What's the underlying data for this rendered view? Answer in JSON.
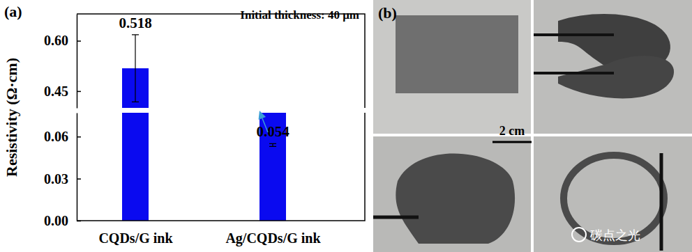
{
  "chart_data": {
    "type": "bar",
    "panel": "(a)",
    "annotation": "Initial thickness: 40 μm",
    "y_label": "Resistivity (Ω·cm)",
    "categories": [
      "CQDs/G ink",
      "Ag/CQDs/G ink"
    ],
    "values": [
      0.518,
      0.054
    ],
    "errors": [
      0.1,
      0.001
    ],
    "color": "#0a0af0",
    "data_labels": true,
    "ylim": [
      0,
      0.68
    ],
    "y_break": [
      0.077,
      0.4
    ],
    "yticks": [
      {
        "value": 0,
        "label": "0.00"
      },
      {
        "value": 0.03,
        "label": "0.03"
      },
      {
        "value": 0.06,
        "label": "0.06"
      },
      {
        "value": 0.45,
        "label": "0.45"
      },
      {
        "value": 0.6,
        "label": "0.60"
      }
    ]
  },
  "photo_panel": {
    "panel": "(b)",
    "scale_bar": "2 cm",
    "watermark": "碳点之光"
  }
}
